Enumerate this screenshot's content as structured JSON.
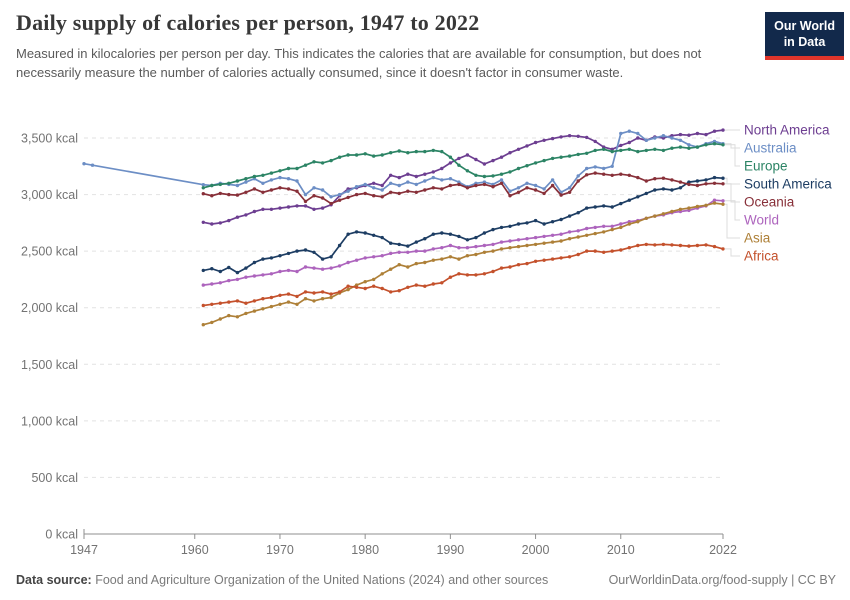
{
  "header": {
    "title": "Daily supply of calories per person, 1947 to 2022",
    "subtitle": "Measured in kilocalories per person per day. This indicates the calories that are available for consumption, but does not necessarily measure the number of calories actually consumed, since it doesn't factor in consumer waste.",
    "logo": {
      "line1": "Our World",
      "line2": "in Data"
    }
  },
  "footer": {
    "datasource_label": "Data source:",
    "datasource_text": " Food and Agriculture Organization of the United Nations (2024) and other sources",
    "credit": "OurWorldinData.org/food-supply | CC BY"
  },
  "chart_data": {
    "type": "line",
    "title": "Daily supply of calories per person, 1947 to 2022",
    "ylabel": "kilocalories per person per day",
    "xlim": [
      1947,
      2022
    ],
    "ylim": [
      0,
      3500
    ],
    "grid": "horizontal-dashed",
    "legend_position": "right",
    "axis_color": "#8f8f8f",
    "grid_color": "#e2e2e2",
    "tick_label_color": "#737373",
    "connector_color": "#dcdcdc",
    "y_ticks": [
      {
        "value": 0,
        "label": "0 kcal"
      },
      {
        "value": 500,
        "label": "500 kcal"
      },
      {
        "value": 1000,
        "label": "1,000 kcal"
      },
      {
        "value": 1500,
        "label": "1,500 kcal"
      },
      {
        "value": 2000,
        "label": "2,000 kcal"
      },
      {
        "value": 2500,
        "label": "2,500 kcal"
      },
      {
        "value": 3000,
        "label": "3,000 kcal"
      },
      {
        "value": 3500,
        "label": "3,500 kcal"
      }
    ],
    "x_ticks": [
      {
        "value": 1947,
        "label": "1947"
      },
      {
        "value": 1960,
        "label": "1960"
      },
      {
        "value": 1970,
        "label": "1970"
      },
      {
        "value": 1980,
        "label": "1980"
      },
      {
        "value": 1990,
        "label": "1990"
      },
      {
        "value": 2000,
        "label": "2000"
      },
      {
        "value": 2010,
        "label": "2010"
      },
      {
        "value": 2022,
        "label": "2022"
      }
    ],
    "series": [
      {
        "name": "North America",
        "color": "#6d3e91",
        "start_year": 1961,
        "values": [
          2755,
          2740,
          2750,
          2770,
          2800,
          2820,
          2850,
          2870,
          2870,
          2880,
          2890,
          2900,
          2900,
          2870,
          2880,
          2910,
          2990,
          3050,
          3060,
          3080,
          3100,
          3080,
          3170,
          3150,
          3180,
          3160,
          3180,
          3200,
          3230,
          3280,
          3320,
          3350,
          3310,
          3270,
          3300,
          3330,
          3370,
          3400,
          3430,
          3460,
          3480,
          3495,
          3510,
          3520,
          3515,
          3505,
          3470,
          3420,
          3400,
          3435,
          3460,
          3500,
          3480,
          3510,
          3500,
          3520,
          3530,
          3525,
          3540,
          3530,
          3560,
          3570
        ]
      },
      {
        "name": "Australia",
        "color": "#6c8ec5",
        "years": [
          1947,
          1948,
          1961,
          1962,
          1963,
          1964,
          1965,
          1966,
          1967,
          1968,
          1969,
          1970,
          1971,
          1972,
          1973,
          1974,
          1975,
          1976,
          1977,
          1978,
          1979,
          1980,
          1981,
          1982,
          1983,
          1984,
          1985,
          1986,
          1987,
          1988,
          1989,
          1990,
          1991,
          1992,
          1993,
          1994,
          1995,
          1996,
          1997,
          1998,
          1999,
          2000,
          2001,
          2002,
          2003,
          2004,
          2005,
          2006,
          2007,
          2008,
          2009,
          2010,
          2011,
          2012,
          2013,
          2014,
          2015,
          2016,
          2017,
          2018,
          2019,
          2020,
          2021,
          2022
        ],
        "values": [
          3273,
          3260,
          3087,
          3080,
          3100,
          3090,
          3080,
          3110,
          3140,
          3100,
          3130,
          3150,
          3140,
          3120,
          3000,
          3060,
          3040,
          2980,
          3000,
          3030,
          3070,
          3090,
          3060,
          3040,
          3100,
          3080,
          3110,
          3090,
          3120,
          3150,
          3130,
          3140,
          3110,
          3070,
          3100,
          3110,
          3090,
          3130,
          3030,
          3060,
          3100,
          3080,
          3050,
          3130,
          3020,
          3060,
          3165,
          3230,
          3245,
          3230,
          3250,
          3540,
          3560,
          3540,
          3480,
          3500,
          3520,
          3500,
          3480,
          3440,
          3420,
          3450,
          3470,
          3450
        ]
      },
      {
        "name": "Europe",
        "color": "#2c8465",
        "start_year": 1961,
        "values": [
          3060,
          3080,
          3090,
          3100,
          3120,
          3140,
          3160,
          3170,
          3190,
          3210,
          3230,
          3230,
          3260,
          3290,
          3280,
          3300,
          3330,
          3350,
          3350,
          3360,
          3340,
          3350,
          3370,
          3385,
          3370,
          3380,
          3380,
          3390,
          3380,
          3330,
          3260,
          3210,
          3170,
          3160,
          3165,
          3180,
          3200,
          3230,
          3255,
          3280,
          3300,
          3320,
          3330,
          3340,
          3355,
          3365,
          3390,
          3400,
          3380,
          3390,
          3400,
          3380,
          3390,
          3400,
          3390,
          3410,
          3420,
          3410,
          3420,
          3440,
          3450,
          3440
        ]
      },
      {
        "name": "South America",
        "color": "#1d3d63",
        "start_year": 1961,
        "values": [
          2330,
          2345,
          2320,
          2355,
          2310,
          2350,
          2400,
          2430,
          2440,
          2460,
          2480,
          2500,
          2510,
          2490,
          2430,
          2450,
          2550,
          2650,
          2670,
          2660,
          2640,
          2620,
          2570,
          2560,
          2545,
          2580,
          2610,
          2650,
          2660,
          2650,
          2630,
          2600,
          2620,
          2660,
          2690,
          2710,
          2720,
          2740,
          2750,
          2770,
          2740,
          2760,
          2780,
          2810,
          2840,
          2880,
          2890,
          2900,
          2890,
          2920,
          2950,
          2980,
          3010,
          3040,
          3050,
          3040,
          3060,
          3110,
          3120,
          3130,
          3150,
          3145
        ]
      },
      {
        "name": "Oceania",
        "color": "#883039",
        "start_year": 1961,
        "values": [
          3008,
          2990,
          3010,
          3000,
          2995,
          3020,
          3050,
          3020,
          3040,
          3060,
          3050,
          3030,
          2940,
          2990,
          2970,
          2920,
          2950,
          2975,
          3000,
          3010,
          2990,
          2980,
          3020,
          3010,
          3030,
          3020,
          3040,
          3060,
          3050,
          3080,
          3090,
          3060,
          3080,
          3090,
          3070,
          3100,
          2990,
          3020,
          3060,
          3040,
          3010,
          3080,
          2995,
          3020,
          3120,
          3175,
          3190,
          3180,
          3170,
          3180,
          3170,
          3150,
          3120,
          3140,
          3145,
          3130,
          3110,
          3090,
          3080,
          3095,
          3100,
          3095
        ]
      },
      {
        "name": "World",
        "color": "#ad64bd",
        "start_year": 1961,
        "values": [
          2200,
          2210,
          2220,
          2240,
          2250,
          2270,
          2280,
          2290,
          2300,
          2320,
          2330,
          2320,
          2360,
          2350,
          2340,
          2350,
          2370,
          2400,
          2420,
          2440,
          2450,
          2460,
          2480,
          2490,
          2490,
          2500,
          2500,
          2520,
          2530,
          2550,
          2530,
          2530,
          2540,
          2550,
          2560,
          2580,
          2590,
          2600,
          2610,
          2620,
          2630,
          2640,
          2650,
          2670,
          2680,
          2700,
          2710,
          2720,
          2720,
          2740,
          2760,
          2770,
          2790,
          2810,
          2820,
          2840,
          2850,
          2860,
          2880,
          2900,
          2950,
          2945
        ]
      },
      {
        "name": "Asia",
        "color": "#ae8038",
        "start_year": 1961,
        "values": [
          1850,
          1870,
          1900,
          1930,
          1920,
          1950,
          1970,
          1990,
          2010,
          2030,
          2050,
          2030,
          2080,
          2060,
          2080,
          2090,
          2130,
          2160,
          2200,
          2230,
          2250,
          2300,
          2340,
          2380,
          2360,
          2390,
          2400,
          2420,
          2430,
          2450,
          2430,
          2460,
          2470,
          2490,
          2500,
          2520,
          2530,
          2540,
          2550,
          2560,
          2570,
          2580,
          2590,
          2610,
          2625,
          2640,
          2655,
          2670,
          2690,
          2710,
          2740,
          2760,
          2790,
          2810,
          2830,
          2850,
          2870,
          2880,
          2895,
          2905,
          2925,
          2915
        ]
      },
      {
        "name": "Africa",
        "color": "#c4512c",
        "start_year": 1961,
        "values": [
          2020,
          2030,
          2040,
          2050,
          2060,
          2040,
          2060,
          2080,
          2090,
          2110,
          2120,
          2100,
          2140,
          2130,
          2140,
          2120,
          2140,
          2190,
          2180,
          2170,
          2190,
          2170,
          2140,
          2150,
          2180,
          2200,
          2190,
          2210,
          2220,
          2270,
          2300,
          2290,
          2290,
          2300,
          2320,
          2350,
          2360,
          2380,
          2390,
          2410,
          2420,
          2430,
          2440,
          2450,
          2470,
          2500,
          2500,
          2490,
          2500,
          2510,
          2530,
          2550,
          2560,
          2555,
          2560,
          2555,
          2550,
          2545,
          2550,
          2555,
          2540,
          2520
        ]
      }
    ]
  }
}
